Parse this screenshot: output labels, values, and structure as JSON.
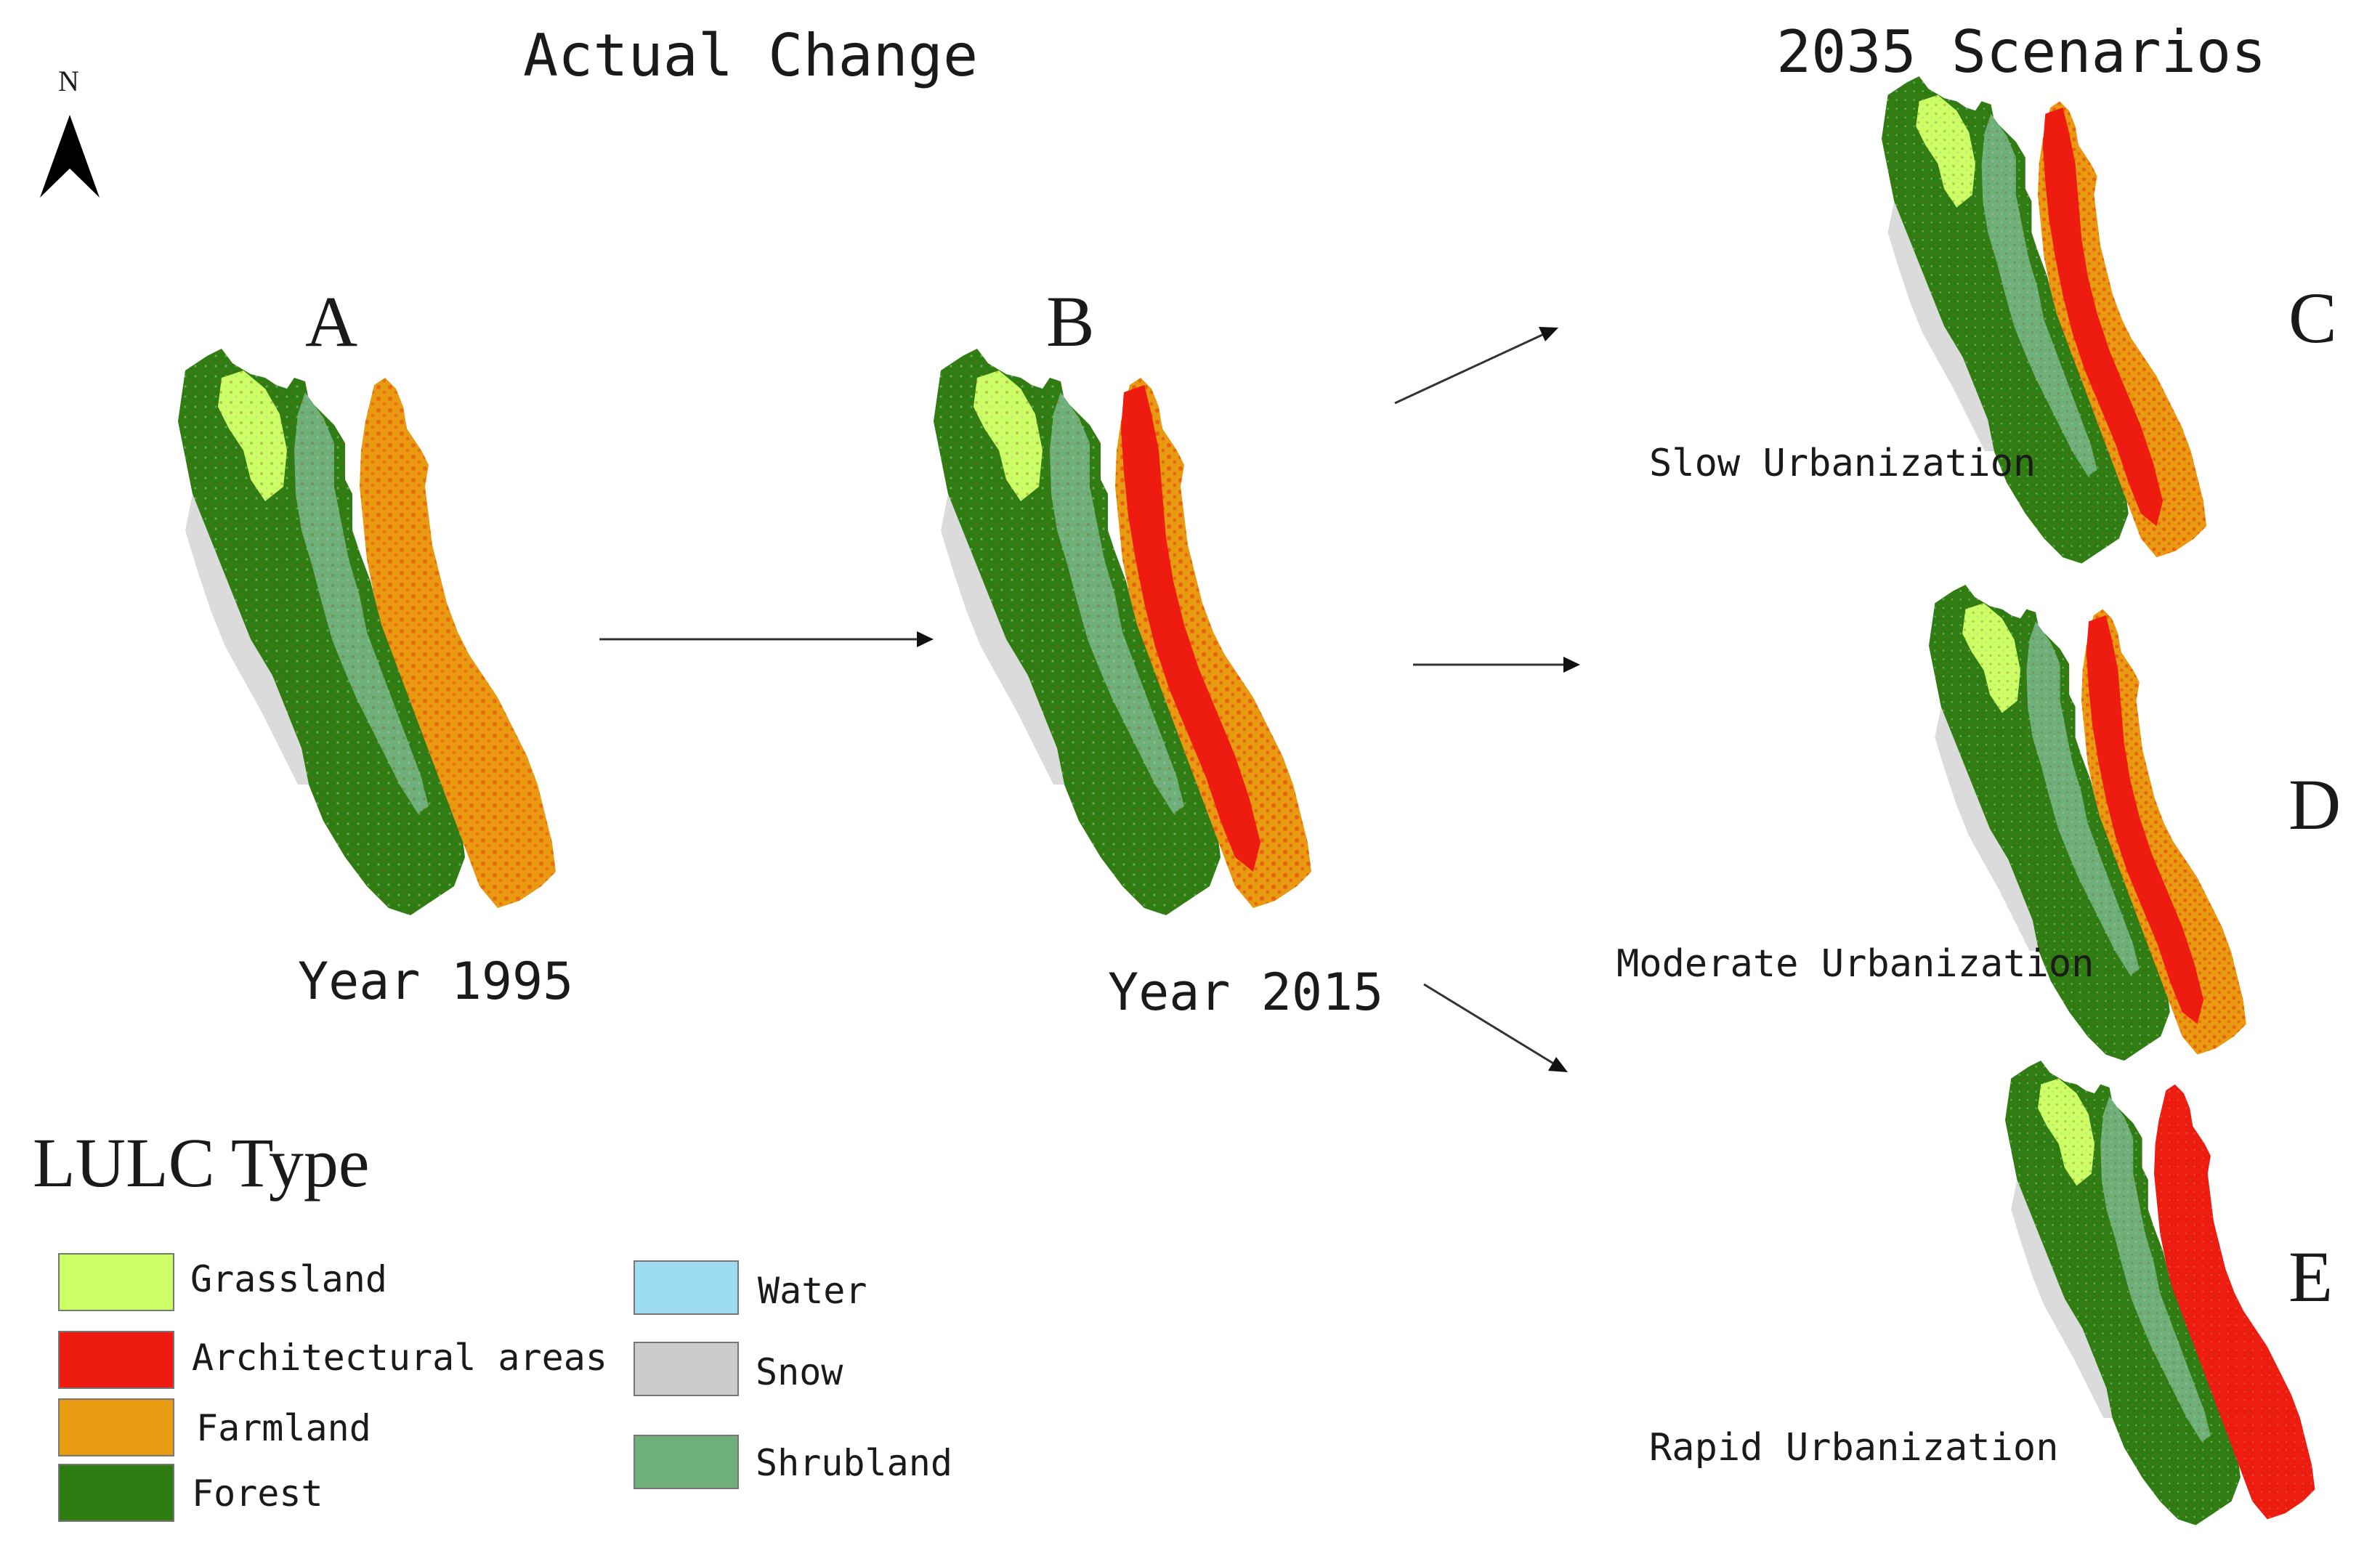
{
  "headers": {
    "actual": "Actual Change",
    "scenarios": "2035 Scenarios"
  },
  "north": "N",
  "maps": [
    {
      "letter": "A",
      "caption": "Year 1995"
    },
    {
      "letter": "B",
      "caption": "Year 2015"
    },
    {
      "letter": "C",
      "caption": "Slow Urbanization"
    },
    {
      "letter": "D",
      "caption": "Moderate Urbanization"
    },
    {
      "letter": "E",
      "caption": "Rapid Urbanization"
    }
  ],
  "legend": {
    "title": "LULC Type",
    "items": [
      {
        "label": "Grassland",
        "color": "#ccff66"
      },
      {
        "label": "Architectural areas",
        "color": "#ee1c10"
      },
      {
        "label": "Farmland",
        "color": "#e89a10"
      },
      {
        "label": "Forest",
        "color": "#2e7d12"
      },
      {
        "label": "Water",
        "color": "#9edcf2"
      },
      {
        "label": "Snow",
        "color": "#cccccc"
      },
      {
        "label": "Shrubland",
        "color": "#6fb07a"
      }
    ]
  }
}
